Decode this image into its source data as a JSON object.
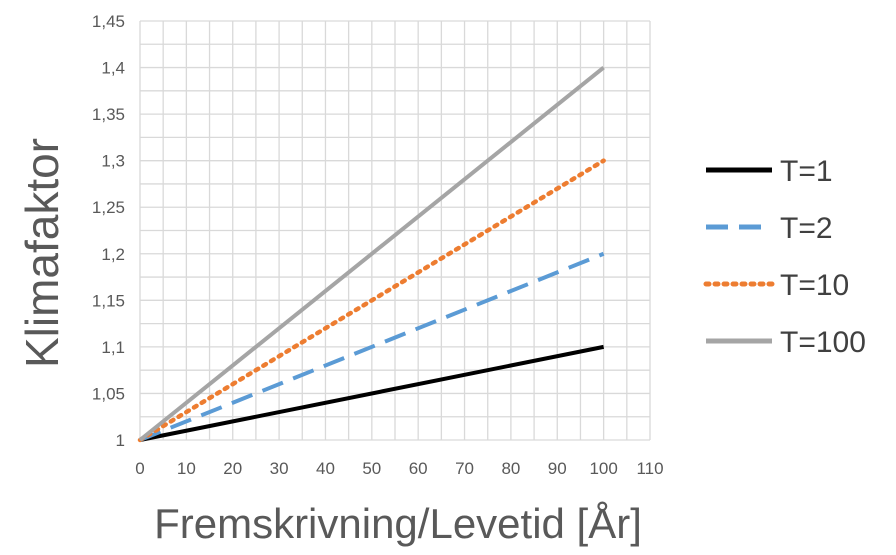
{
  "chart_data": {
    "type": "line",
    "xlabel": "Fremskrivning/Levetid [År]",
    "ylabel": "Klimafaktor",
    "xlim": [
      0,
      110
    ],
    "ylim": [
      1,
      1.45
    ],
    "xticks": [
      "0",
      "10",
      "20",
      "30",
      "40",
      "50",
      "60",
      "70",
      "80",
      "90",
      "100",
      "110"
    ],
    "yticks": [
      "1",
      "1,05",
      "1,1",
      "1,15",
      "1,2",
      "1,25",
      "1,3",
      "1,35",
      "1,4",
      "1,45"
    ],
    "x_minor_step": 5,
    "y_minor_step": 0.025,
    "grid": true,
    "legend_position": "right",
    "series": [
      {
        "name": "T=1",
        "color": "#000000",
        "style": "solid",
        "x": [
          0,
          100
        ],
        "y": [
          1,
          1.1
        ]
      },
      {
        "name": "T=2",
        "color": "#5b9bd5",
        "style": "dashed",
        "x": [
          0,
          100
        ],
        "y": [
          1,
          1.2
        ]
      },
      {
        "name": "T=10",
        "color": "#ed7d31",
        "style": "dotted",
        "x": [
          0,
          100
        ],
        "y": [
          1,
          1.3
        ]
      },
      {
        "name": "T=100",
        "color": "#a5a5a5",
        "style": "solid",
        "x": [
          0,
          100
        ],
        "y": [
          1,
          1.4
        ]
      }
    ]
  }
}
